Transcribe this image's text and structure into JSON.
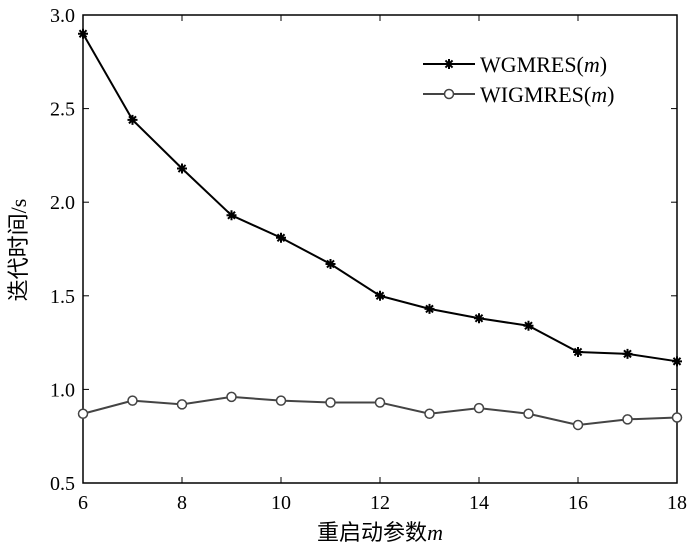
{
  "chart_data": {
    "type": "line",
    "xlabel": "重启动参数m",
    "ylabel": "迭代时间/s",
    "xlim": [
      6,
      18
    ],
    "ylim": [
      0.5,
      3.0
    ],
    "xticks": [
      6,
      8,
      10,
      12,
      14,
      16,
      18
    ],
    "yticks": [
      "0.5",
      "1.0",
      "1.5",
      "2.0",
      "2.5",
      "3.0"
    ],
    "grid": false,
    "legend_position": "top-right",
    "x": [
      6,
      7,
      8,
      9,
      10,
      11,
      12,
      13,
      14,
      15,
      16,
      17,
      18
    ],
    "series": [
      {
        "name": "WGMRES(m)",
        "marker": "star",
        "color": "#000000",
        "values": [
          2.9,
          2.44,
          2.18,
          1.93,
          1.81,
          1.67,
          1.5,
          1.43,
          1.38,
          1.34,
          1.2,
          1.19,
          1.15
        ]
      },
      {
        "name": "WIGMRES(m)",
        "marker": "circle",
        "color": "#444444",
        "values": [
          0.87,
          0.94,
          0.92,
          0.96,
          0.94,
          0.93,
          0.93,
          0.87,
          0.9,
          0.87,
          0.81,
          0.84,
          0.85
        ]
      }
    ]
  }
}
